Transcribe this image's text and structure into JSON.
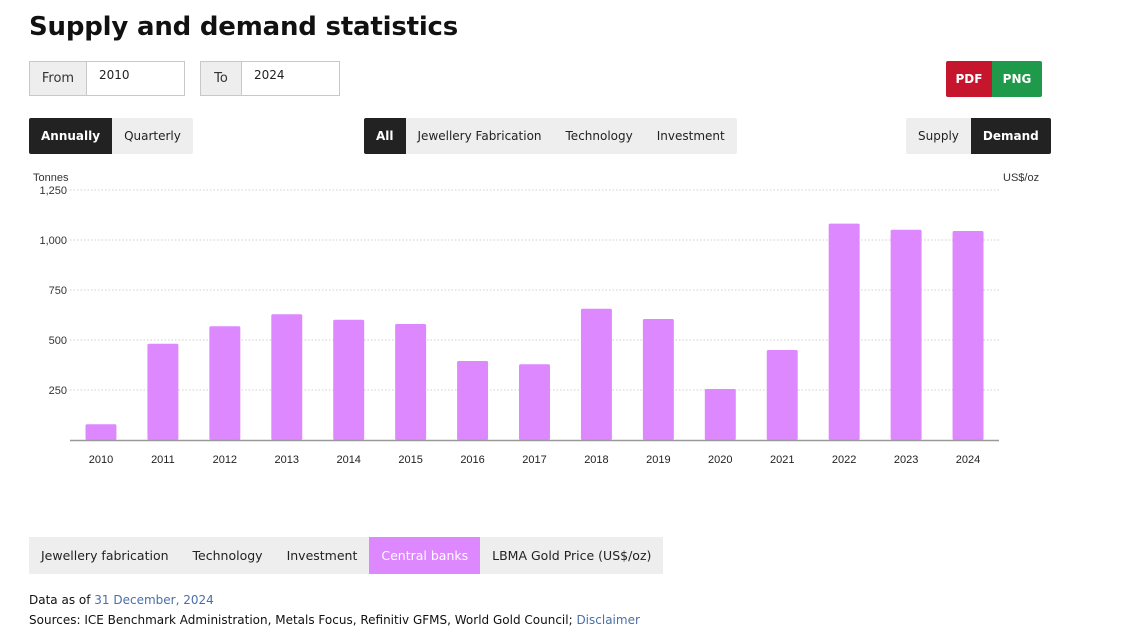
{
  "page": {
    "title": "Supply and demand statistics"
  },
  "date_range": {
    "from_label": "From",
    "from_value": "2010",
    "to_label": "To",
    "to_value": "2024"
  },
  "export": {
    "pdf_label": "PDF",
    "png_label": "PNG",
    "pdf_color": "#c5162e",
    "png_color": "#1f9a4a"
  },
  "period_toggle": {
    "items": [
      "Annually",
      "Quarterly"
    ],
    "active": "Annually"
  },
  "category_toggle": {
    "items": [
      "All",
      "Jewellery Fabrication",
      "Technology",
      "Investment"
    ],
    "active": "All"
  },
  "mode_toggle": {
    "items": [
      "Supply",
      "Demand"
    ],
    "active": "Demand"
  },
  "chart_data": {
    "type": "bar",
    "y_unit_left": "Tonnes",
    "y_unit_right": "US$/oz",
    "categories": [
      "2010",
      "2011",
      "2012",
      "2013",
      "2014",
      "2015",
      "2016",
      "2017",
      "2018",
      "2019",
      "2020",
      "2021",
      "2022",
      "2023",
      "2024"
    ],
    "series": [
      {
        "name": "Central banks",
        "color": "#dd88ff",
        "values": [
          79,
          481,
          569,
          629,
          601,
          580,
          395,
          379,
          656,
          605,
          255,
          450,
          1082,
          1051,
          1045
        ]
      }
    ],
    "ylim": [
      0,
      1250
    ],
    "yticks": [
      250,
      500,
      750,
      1000,
      1250
    ],
    "ytick_labels": [
      "250",
      "500",
      "750",
      "1,000",
      "1,250"
    ],
    "grid": true,
    "grid_style": "dotted"
  },
  "legend": {
    "items": [
      "Jewellery fabrication",
      "Technology",
      "Investment",
      "Central banks",
      "LBMA Gold Price (US$/oz)"
    ],
    "active": "Central banks",
    "active_color": "#dd88ff"
  },
  "footer": {
    "data_as_of_label": "Data as of ",
    "data_as_of_date": "31 December, 2024",
    "sources_label": "Sources: ICE Benchmark Administration, Metals Focus, Refinitiv GFMS, World Gold Council; ",
    "disclaimer_label": "Disclaimer"
  }
}
